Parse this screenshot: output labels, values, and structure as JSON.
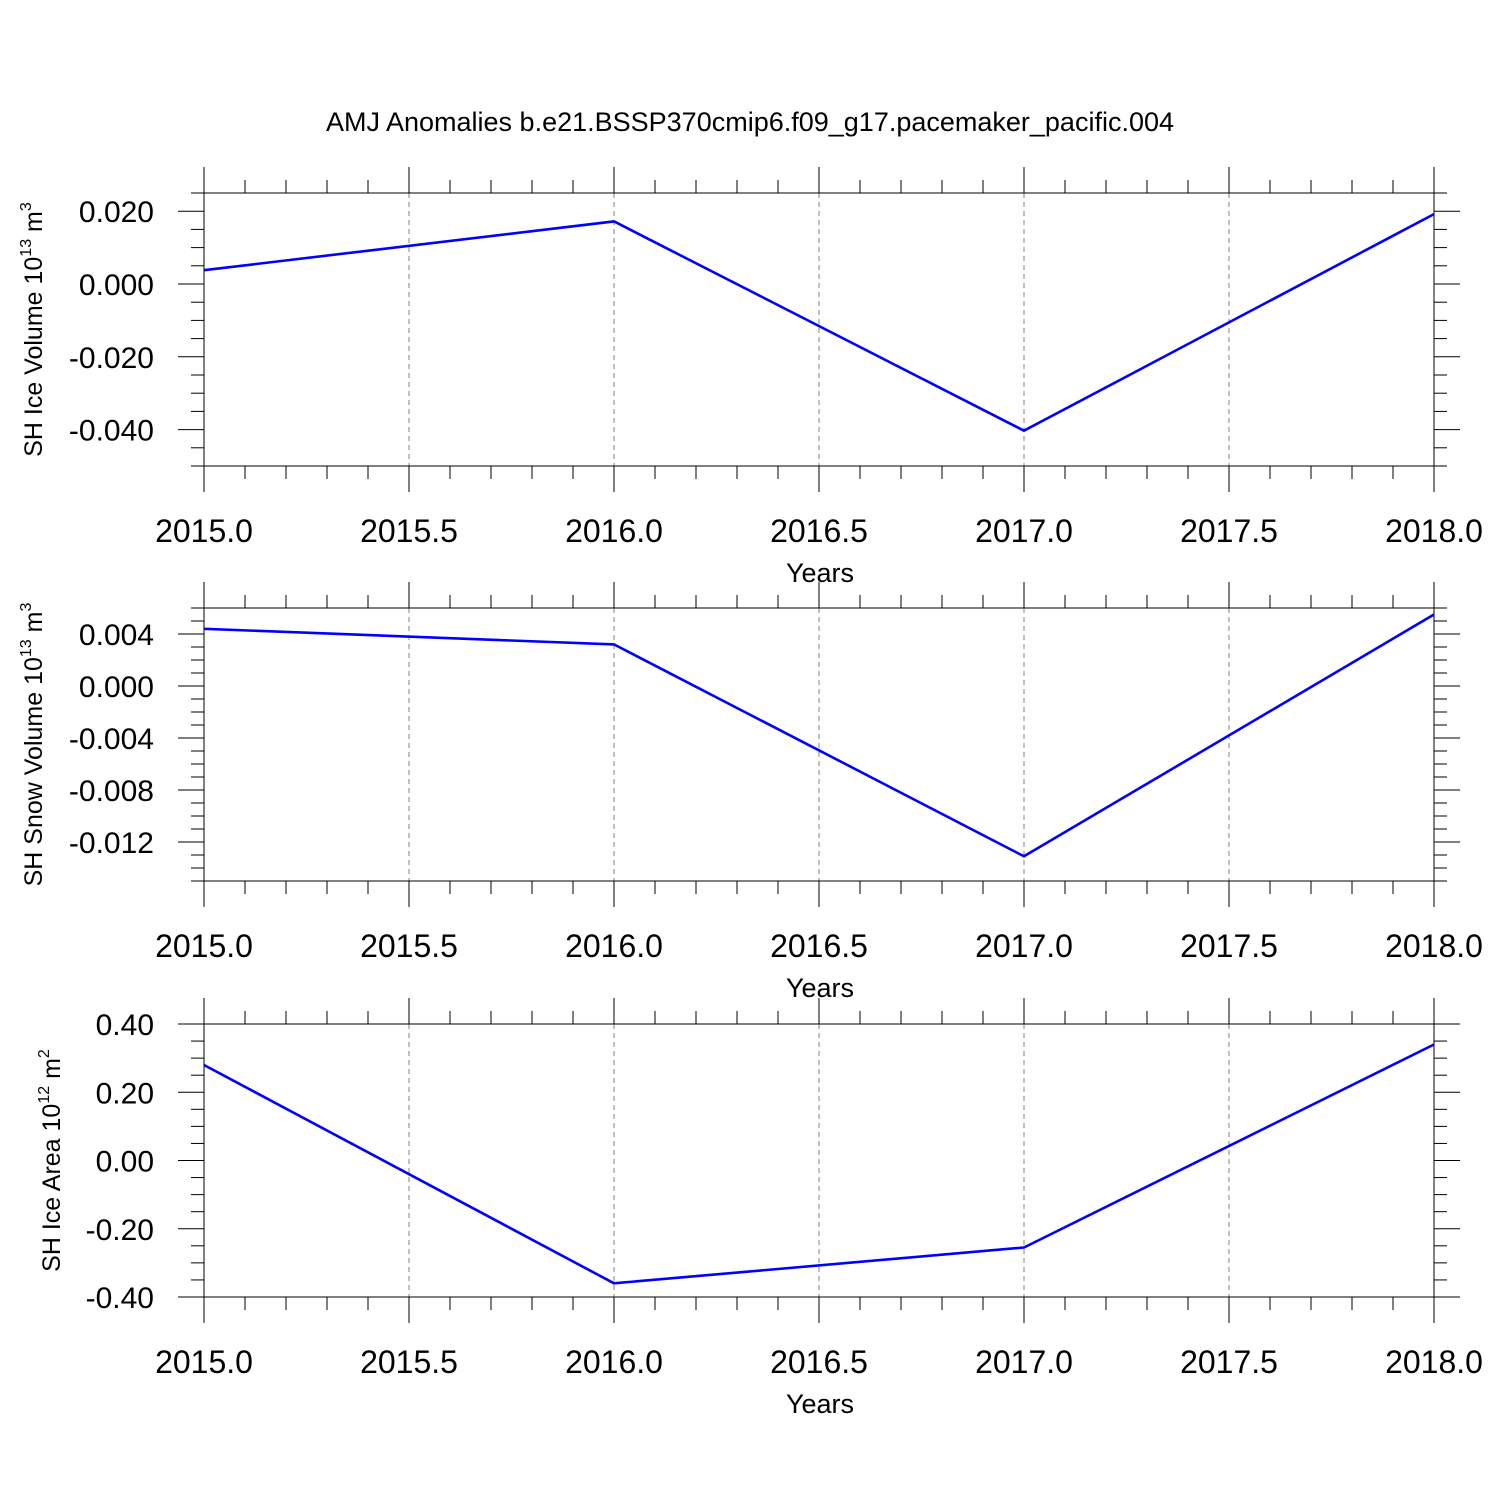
{
  "figure": {
    "title": "AMJ Anomalies b.e21.BSSP370cmip6.f09_g17.pacemaker_pacific.004"
  },
  "colors": {
    "series": "#0000ff",
    "frame": "#000000",
    "grid": "#808080",
    "background": "#ffffff"
  },
  "chart_data": [
    {
      "type": "line",
      "title": "",
      "xlabel": "Years",
      "ylabel": "SH Ice Volume 10",
      "ylabel_sup": "13",
      "ylabel_unit": "m",
      "ylabel_unit_sup": "3",
      "xlim": [
        2015.0,
        2018.0
      ],
      "ylim": [
        -0.05,
        0.025
      ],
      "x": [
        2015.0,
        2016.0,
        2017.0,
        2018.0
      ],
      "series": [
        {
          "values": [
            0.0038,
            0.0172,
            -0.0403,
            0.0192
          ]
        }
      ],
      "xticks": [
        "2015.0",
        "2015.5",
        "2016.0",
        "2016.5",
        "2017.0",
        "2017.5",
        "2018.0"
      ],
      "xtick_values": [
        2015.0,
        2015.5,
        2016.0,
        2016.5,
        2017.0,
        2017.5,
        2018.0
      ],
      "yticks": [
        "0.020",
        "0.000",
        "-0.020",
        "-0.040"
      ],
      "ytick_values": [
        0.02,
        0.0,
        -0.02,
        -0.04
      ],
      "yminor_step": 0.005,
      "grid": "vertical dashed"
    },
    {
      "type": "line",
      "title": "",
      "xlabel": "Years",
      "ylabel": "SH Snow Volume 10",
      "ylabel_sup": "13",
      "ylabel_unit": "m",
      "ylabel_unit_sup": "3",
      "xlim": [
        2015.0,
        2018.0
      ],
      "ylim": [
        -0.015,
        0.006
      ],
      "x": [
        2015.0,
        2016.0,
        2017.0,
        2018.0
      ],
      "series": [
        {
          "values": [
            0.0044,
            0.0032,
            -0.0131,
            0.0055
          ]
        }
      ],
      "xticks": [
        "2015.0",
        "2015.5",
        "2016.0",
        "2016.5",
        "2017.0",
        "2017.5",
        "2018.0"
      ],
      "xtick_values": [
        2015.0,
        2015.5,
        2016.0,
        2016.5,
        2017.0,
        2017.5,
        2018.0
      ],
      "yticks": [
        "0.004",
        "0.000",
        "-0.004",
        "-0.008",
        "-0.012"
      ],
      "ytick_values": [
        0.004,
        0.0,
        -0.004,
        -0.008,
        -0.012
      ],
      "yminor_step": 0.001,
      "grid": "vertical dashed"
    },
    {
      "type": "line",
      "title": "",
      "xlabel": "Years",
      "ylabel": "SH Ice Area 10",
      "ylabel_sup": "12",
      "ylabel_unit": "m",
      "ylabel_unit_sup": "2",
      "xlim": [
        2015.0,
        2018.0
      ],
      "ylim": [
        -0.4,
        0.4
      ],
      "x": [
        2015.0,
        2016.0,
        2017.0,
        2018.0
      ],
      "series": [
        {
          "values": [
            0.28,
            -0.36,
            -0.255,
            0.34
          ]
        }
      ],
      "xticks": [
        "2015.0",
        "2015.5",
        "2016.0",
        "2016.5",
        "2017.0",
        "2017.5",
        "2018.0"
      ],
      "xtick_values": [
        2015.0,
        2015.5,
        2016.0,
        2016.5,
        2017.0,
        2017.5,
        2018.0
      ],
      "yticks": [
        "0.40",
        "0.20",
        "0.00",
        "-0.20",
        "-0.40"
      ],
      "ytick_values": [
        0.4,
        0.2,
        0.0,
        -0.2,
        -0.4
      ],
      "yminor_step": 0.05,
      "grid": "vertical dashed"
    }
  ]
}
